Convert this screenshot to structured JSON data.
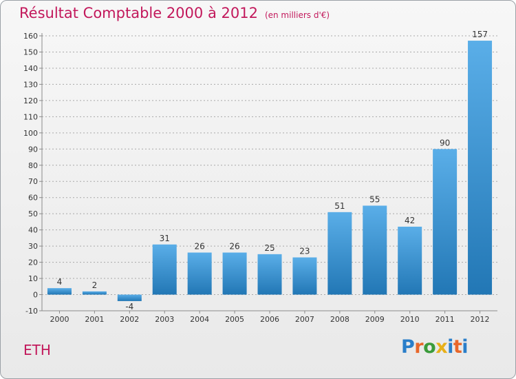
{
  "title": {
    "main": "Résultat Comptable 2000 à 2012",
    "unit": "(en milliers d'€)"
  },
  "location": "ETH",
  "logo": {
    "letters": [
      "P",
      "r",
      "o",
      "x",
      "i",
      "t",
      "i"
    ],
    "colors": [
      "#2a7ec9",
      "#e8672a",
      "#3b9b3b",
      "#e8b019",
      "#2a7ec9",
      "#e8672a",
      "#2a7ec9"
    ]
  },
  "colors": {
    "bar_light": "#5aaee8",
    "bar_dark": "#2277b5",
    "axis": "#8a8a8a",
    "grid": "#a8a8a8",
    "text": "#333333",
    "title": "#c2185b"
  },
  "chart_data": {
    "type": "bar",
    "title": "Résultat Comptable 2000 à 2012",
    "subtitle": "(en milliers d'€)",
    "categories": [
      "2000",
      "2001",
      "2002",
      "2003",
      "2004",
      "2005",
      "2006",
      "2007",
      "2008",
      "2009",
      "2010",
      "2011",
      "2012"
    ],
    "values": [
      4,
      2,
      -4,
      31,
      26,
      26,
      25,
      23,
      51,
      55,
      42,
      90,
      157
    ],
    "value_labels": [
      "4",
      "2",
      "-4",
      "31",
      "26",
      "26",
      "25",
      "23",
      "51",
      "55",
      "42",
      "90",
      "157"
    ],
    "xlabel": "",
    "ylabel": "",
    "ylim": [
      -10,
      160
    ],
    "yticks": [
      -10,
      0,
      10,
      20,
      30,
      40,
      50,
      60,
      70,
      80,
      90,
      100,
      110,
      120,
      130,
      140,
      150,
      160
    ],
    "grid": "horizontal dashed"
  }
}
